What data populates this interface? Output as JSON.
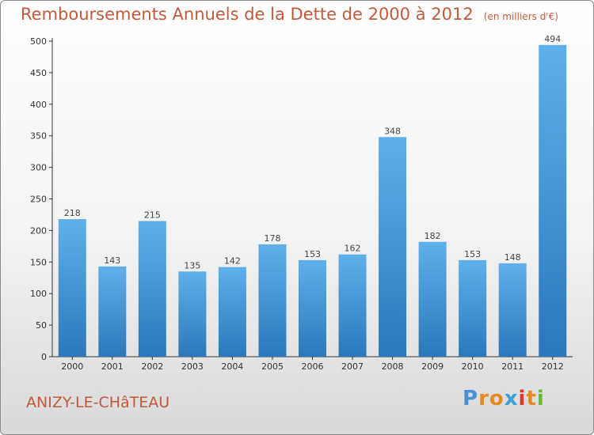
{
  "header": {
    "title": "Remboursements Annuels de la Dette de 2000 à 2012",
    "unit": "(en milliers d'€)"
  },
  "footer": {
    "city": "ANIZY-LE-CHâTEAU",
    "brand_letters": [
      "P",
      "r",
      "o",
      "x",
      "i",
      "t",
      "i"
    ],
    "brand_colors": [
      "#4a90d9",
      "#e8891f",
      "#e8891f",
      "#3aa0d8",
      "#e4342b",
      "#e8891f",
      "#6ab63a"
    ]
  },
  "colors": {
    "bar_light": "#5fb0ea",
    "bar_dark": "#2a78bb",
    "title": "#c15a3a",
    "axis": "#333333"
  },
  "chart_data": {
    "type": "bar",
    "title": "Remboursements Annuels de la Dette de 2000 à 2012",
    "unit": "(en milliers d'€)",
    "categories": [
      "2000",
      "2001",
      "2002",
      "2003",
      "2004",
      "2005",
      "2006",
      "2007",
      "2008",
      "2009",
      "2010",
      "2011",
      "2012"
    ],
    "values": [
      218,
      143,
      215,
      135,
      142,
      178,
      153,
      162,
      348,
      182,
      153,
      148,
      494
    ],
    "ylim": [
      0,
      500
    ],
    "yticks": [
      0,
      50,
      100,
      150,
      200,
      250,
      300,
      350,
      400,
      450,
      500
    ],
    "grid": false,
    "data_labels": true
  }
}
